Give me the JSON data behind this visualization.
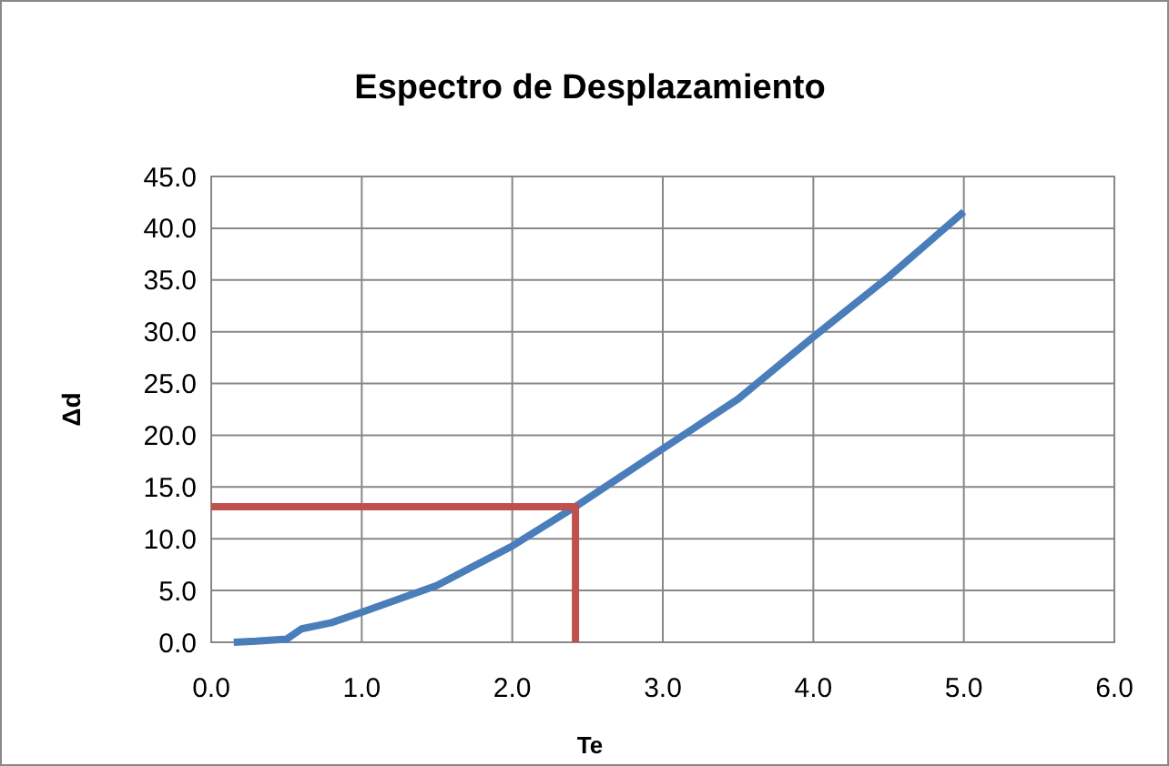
{
  "chart_data": {
    "type": "line",
    "title": "Espectro de Desplazamiento",
    "xlabel": "Te",
    "ylabel": "Δd",
    "xlim": [
      0,
      6
    ],
    "xticks": [
      {
        "value": 0,
        "label": "0.0"
      },
      {
        "value": 1,
        "label": "1.0"
      },
      {
        "value": 2,
        "label": "2.0"
      },
      {
        "value": 3,
        "label": "3.0"
      },
      {
        "value": 4,
        "label": "4.0"
      },
      {
        "value": 5,
        "label": "5.0"
      },
      {
        "value": 6,
        "label": "6.0"
      }
    ],
    "ylim": [
      0,
      45
    ],
    "yticks": [
      {
        "value": 0,
        "label": "0.0"
      },
      {
        "value": 5,
        "label": "5.0"
      },
      {
        "value": 10,
        "label": "10.0"
      },
      {
        "value": 15,
        "label": "15.0"
      },
      {
        "value": 20,
        "label": "20.0"
      },
      {
        "value": 25,
        "label": "25.0"
      },
      {
        "value": 30,
        "label": "30.0"
      },
      {
        "value": 35,
        "label": "35.0"
      },
      {
        "value": 40,
        "label": "40.0"
      },
      {
        "value": 45,
        "label": "45.0"
      }
    ],
    "grid": true,
    "marker": "none",
    "line_style": "solid",
    "series": [
      {
        "color": "#4a7ebb",
        "x": [
          0.15,
          0.3,
          0.5,
          0.6,
          0.8,
          1.0,
          1.5,
          2.0,
          2.42,
          3.0,
          3.5,
          4.0,
          4.5,
          5.0
        ],
        "values": [
          0,
          0.1,
          0.3,
          1.3,
          1.9,
          2.9,
          5.5,
          9.3,
          13.1,
          18.7,
          23.5,
          29.5,
          35.3,
          41.6
        ]
      },
      {
        "color": "#c0504d",
        "x": [
          0,
          2.42,
          2.42
        ],
        "values": [
          13.1,
          13.1,
          0
        ]
      }
    ]
  }
}
